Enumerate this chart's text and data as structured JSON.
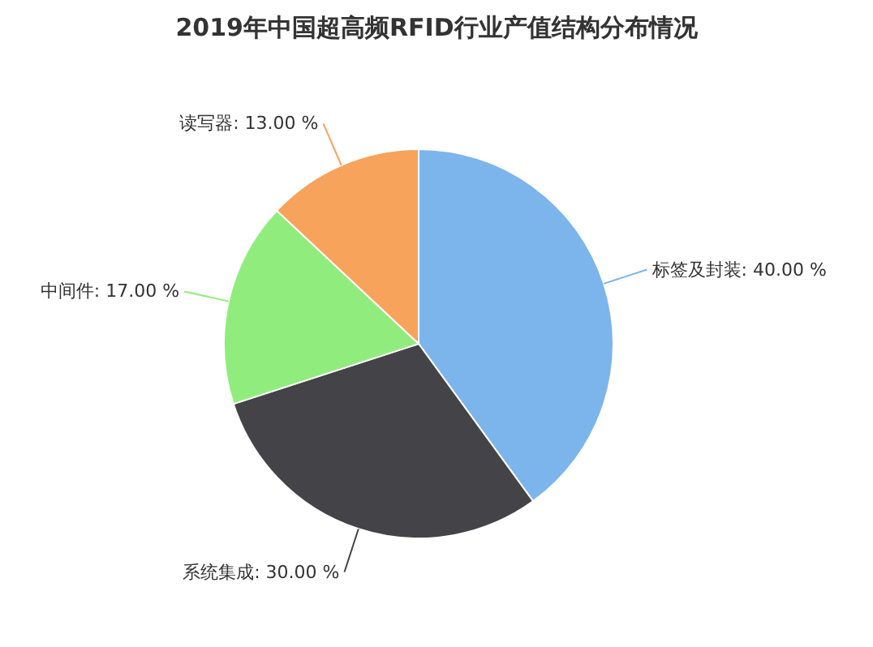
{
  "chart_data": {
    "type": "pie",
    "title": "2019年中国超高频RFID行业产值结构分布情况",
    "categories": [
      "标签及封装",
      "系统集成",
      "中间件",
      "读写器"
    ],
    "values": [
      40,
      30,
      17,
      13
    ],
    "colors": [
      "#7cb5ec",
      "#434348",
      "#90ed7d",
      "#f7a35c"
    ],
    "value_labels": [
      "40.00 %",
      "30.00 %",
      "17.00 %",
      "13.00 %"
    ],
    "legend": false
  }
}
